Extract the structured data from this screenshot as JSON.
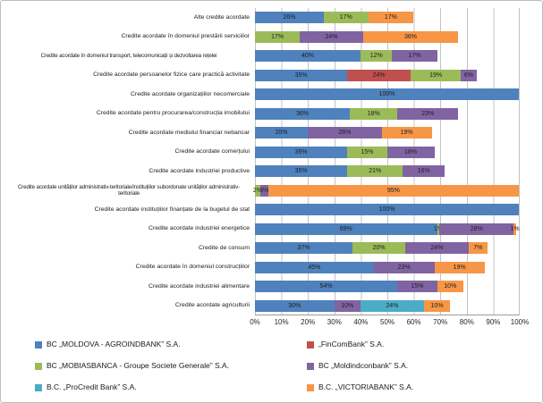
{
  "chart_data": {
    "type": "bar",
    "variant": "horizontal-stacked",
    "title": "",
    "legend_position": "bottom",
    "x_axis": {
      "min": 0,
      "max": 100,
      "tick_step": 10,
      "grid": true,
      "ticks": [
        "0%",
        "10%",
        "20%",
        "30%",
        "40%",
        "50%",
        "60%",
        "70%",
        "80%",
        "90%",
        "100%"
      ]
    },
    "series": [
      {
        "name": "BC „MOLDOVA - AGROINDBANK” S.A.",
        "color": "#4F81BD"
      },
      {
        "name": "„FinComBank” S.A.",
        "color": "#C0504D"
      },
      {
        "name": "BC „MOBIASBANCA - Groupe Societe Generale” S.A.",
        "color": "#9BBB59"
      },
      {
        "name": "BC „Moldindconbank” S.A.",
        "color": "#8064A2"
      },
      {
        "name": "B.C. „ProCredit Bank” S.A.",
        "color": "#4BACC6"
      },
      {
        "name": "B.C. „VICTORIABANK” S.A.",
        "color": "#F79646"
      }
    ],
    "rows": [
      {
        "category": "Alte credite acordate",
        "segments": [
          {
            "series": 0,
            "value": 26
          },
          {
            "series": 2,
            "value": 17
          },
          {
            "series": 5,
            "value": 17
          }
        ]
      },
      {
        "category": "Credite acordate în domeniul prestării serviciilor",
        "segments": [
          {
            "series": 2,
            "value": 17
          },
          {
            "series": 3,
            "value": 24
          },
          {
            "series": 5,
            "value": 36
          }
        ]
      },
      {
        "category": "Credite acordate în domeniul transport, telecomunicații și dezvoltarea rețelei",
        "segments": [
          {
            "series": 0,
            "value": 40
          },
          {
            "series": 2,
            "value": 12
          },
          {
            "series": 3,
            "value": 17
          }
        ]
      },
      {
        "category": "Credite acordate persoanelor fizice care practică activitate",
        "segments": [
          {
            "series": 0,
            "value": 35
          },
          {
            "series": 1,
            "value": 24
          },
          {
            "series": 2,
            "value": 19
          },
          {
            "series": 3,
            "value": 6
          }
        ]
      },
      {
        "category": "Credite acordate organizațiilor necomerciale",
        "segments": [
          {
            "series": 0,
            "value": 100
          }
        ]
      },
      {
        "category": "Credite acordate pentru procurarea/construcția imobilului",
        "segments": [
          {
            "series": 0,
            "value": 36
          },
          {
            "series": 2,
            "value": 18
          },
          {
            "series": 3,
            "value": 23
          }
        ]
      },
      {
        "category": "Credite acordate mediului financiar nebancar",
        "segments": [
          {
            "series": 0,
            "value": 20
          },
          {
            "series": 3,
            "value": 28
          },
          {
            "series": 5,
            "value": 19
          }
        ]
      },
      {
        "category": "Credite acordate comerțului",
        "segments": [
          {
            "series": 0,
            "value": 35
          },
          {
            "series": 2,
            "value": 15
          },
          {
            "series": 3,
            "value": 18
          }
        ]
      },
      {
        "category": "Credite acordate industriei productive",
        "segments": [
          {
            "series": 0,
            "value": 35
          },
          {
            "series": 2,
            "value": 21
          },
          {
            "series": 3,
            "value": 16
          }
        ]
      },
      {
        "category": "Credite acordate unităților administrativ-teritoriale/instituțiilor subordonate unităților administrativ-teritoriale",
        "segments": [
          {
            "series": 2,
            "value": 2
          },
          {
            "series": 3,
            "value": 3
          },
          {
            "series": 5,
            "value": 95
          }
        ]
      },
      {
        "category": "Credite acordate instituțiilor finanțate de la bugetul de stat",
        "segments": [
          {
            "series": 0,
            "value": 100
          }
        ]
      },
      {
        "category": "Credite acordate industriei energetice",
        "segments": [
          {
            "series": 0,
            "value": 69
          },
          {
            "series": 2,
            "value": 1
          },
          {
            "series": 3,
            "value": 28
          },
          {
            "series": 5,
            "value": 1
          }
        ]
      },
      {
        "category": "Credite de consum",
        "segments": [
          {
            "series": 0,
            "value": 37
          },
          {
            "series": 2,
            "value": 20
          },
          {
            "series": 3,
            "value": 24
          },
          {
            "series": 5,
            "value": 7
          }
        ]
      },
      {
        "category": "Credite acordate în domeniul construcțiilor",
        "segments": [
          {
            "series": 0,
            "value": 45
          },
          {
            "series": 3,
            "value": 23
          },
          {
            "series": 5,
            "value": 19
          }
        ]
      },
      {
        "category": "Credite acordate industriei alimentare",
        "segments": [
          {
            "series": 0,
            "value": 54
          },
          {
            "series": 3,
            "value": 15
          },
          {
            "series": 5,
            "value": 10
          }
        ]
      },
      {
        "category": "Credite acordate agriculturii",
        "segments": [
          {
            "series": 0,
            "value": 30
          },
          {
            "series": 3,
            "value": 10
          },
          {
            "series": 4,
            "value": 24
          },
          {
            "series": 5,
            "value": 10
          }
        ]
      }
    ]
  }
}
